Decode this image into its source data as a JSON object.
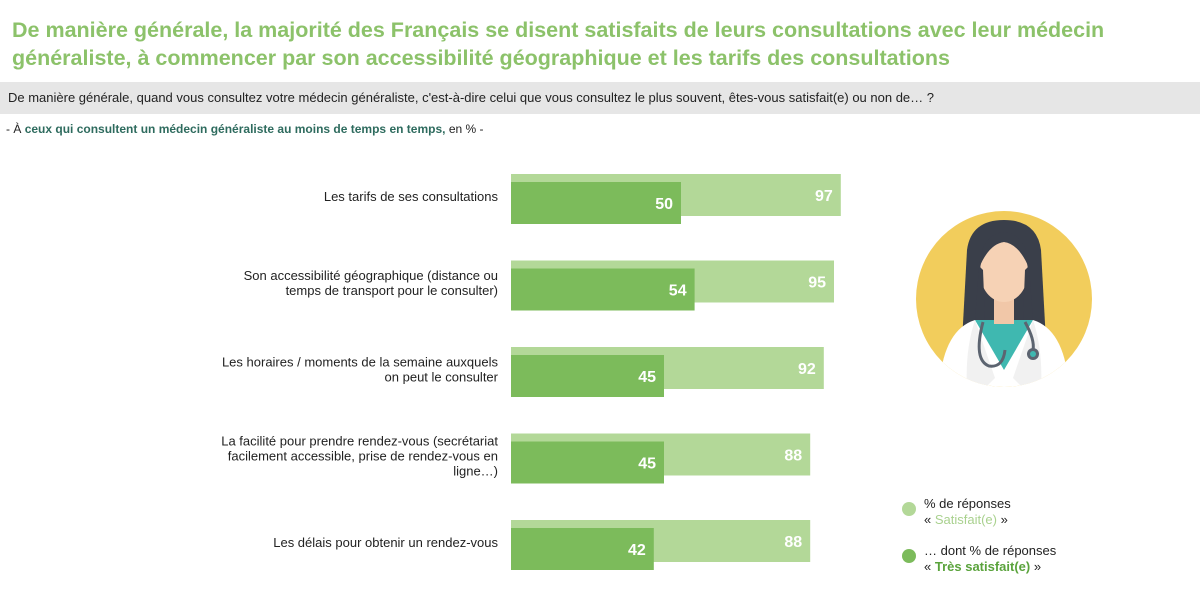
{
  "title": "De manière générale, la majorité des Français se disent satisfaits de leurs consultations avec leur médecin généraliste, à commencer par son accessibilité géographique et les tarifs des consultations",
  "question": "De manière générale, quand vous consultez votre médecin généraliste, c'est-à-dire celui que vous consultez le plus souvent, êtes-vous satisfait(e) ou non de… ?",
  "base": {
    "prefix": "- À",
    "emphasis": "ceux qui consultent un médecin généraliste au moins de temps en temps,",
    "suffix": "en % -"
  },
  "legend": {
    "item1_line1": "% de réponses",
    "item1_open": "«",
    "item1_highlight": "Satisfait(e)",
    "item1_close": "»",
    "item2_line1": "… dont % de réponses",
    "item2_open": "«",
    "item2_highlight": "Très satisfait(e)",
    "item2_close": "»"
  },
  "colors": {
    "title": "#8cc26a",
    "satisfied": "#b3d898",
    "very_satisfied": "#7cbb5b",
    "question_band": "#e6e6e6"
  },
  "icon": "female-doctor-icon",
  "chart_data": {
    "type": "bar",
    "orientation": "horizontal",
    "categories": [
      [
        "Les tarifs de ses consultations"
      ],
      [
        "Son accessibilité géographique (distance ou",
        "temps de transport pour le consulter)"
      ],
      [
        "Les horaires / moments de la semaine auxquels",
        "on peut le consulter"
      ],
      [
        "La facilité pour prendre rendez-vous (secrétariat",
        "facilement accessible, prise de rendez-vous en",
        "ligne…)"
      ],
      [
        "Les délais pour obtenir un rendez-vous"
      ]
    ],
    "series": [
      {
        "name": "Satisfait(e)",
        "values": [
          97,
          95,
          92,
          88,
          88
        ]
      },
      {
        "name": "Très satisfait(e)",
        "values": [
          50,
          54,
          45,
          45,
          42
        ]
      }
    ],
    "xlim": [
      0,
      100
    ]
  }
}
